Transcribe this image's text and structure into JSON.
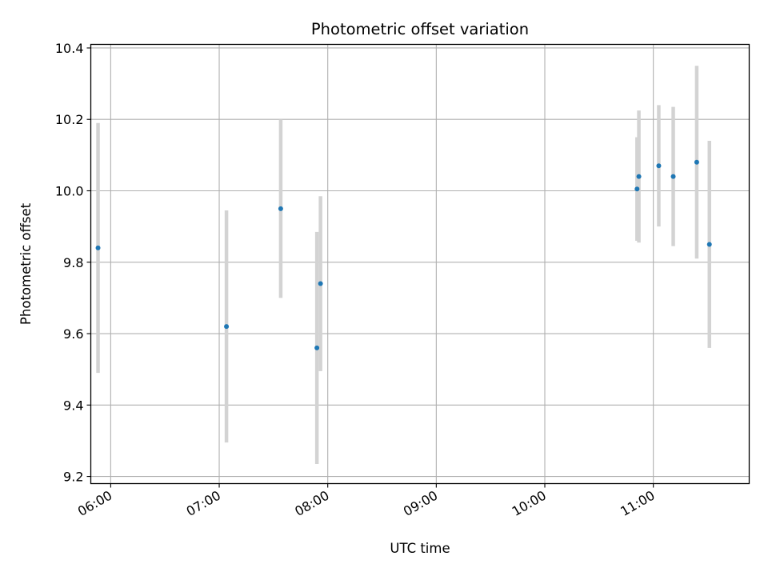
{
  "chart_data": {
    "type": "scatter",
    "title": "Photometric offset variation",
    "xlabel": "UTC time",
    "ylabel": "Photometric offset",
    "x_ticks": [
      "06:00",
      "07:00",
      "08:00",
      "09:00",
      "10:00",
      "11:00"
    ],
    "y_ticks": [
      "9.2",
      "9.4",
      "9.6",
      "9.8",
      "10.0",
      "10.2",
      "10.4"
    ],
    "xlim": [
      "05:49",
      "11:53"
    ],
    "ylim": [
      9.18,
      10.41
    ],
    "grid": true,
    "colors": {
      "point": "#1f77b4",
      "errorbar": "#d3d3d3",
      "grid": "#b0b0b0"
    },
    "points": [
      {
        "x": "05:53",
        "y": 9.84,
        "err": 0.35
      },
      {
        "x": "07:04",
        "y": 9.62,
        "err": 0.325
      },
      {
        "x": "07:34",
        "y": 9.95,
        "err": 0.25
      },
      {
        "x": "07:54",
        "y": 9.56,
        "err": 0.325
      },
      {
        "x": "07:56",
        "y": 9.74,
        "err": 0.245
      },
      {
        "x": "10:51",
        "y": 10.005,
        "err": 0.145
      },
      {
        "x": "10:52",
        "y": 10.04,
        "err": 0.185
      },
      {
        "x": "11:03",
        "y": 10.07,
        "err": 0.17
      },
      {
        "x": "11:11",
        "y": 10.04,
        "err": 0.195
      },
      {
        "x": "11:24",
        "y": 10.08,
        "err": 0.27
      },
      {
        "x": "11:31",
        "y": 9.85,
        "err": 0.29
      }
    ]
  }
}
